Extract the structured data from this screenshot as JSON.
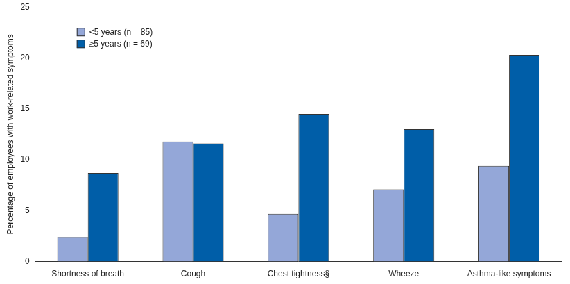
{
  "chart_data": {
    "type": "bar",
    "y_label": "Percentage of employees with work-related symptoms",
    "categories": [
      "Shortness of breath",
      "Cough",
      "Chest tightness§",
      "Wheeze",
      "Asthma-like symptoms"
    ],
    "series": [
      {
        "name": "<5 years (n = 85)",
        "color": "#94a7d8",
        "values": [
          2.4,
          11.8,
          4.7,
          7.1,
          9.4
        ]
      },
      {
        "name": "≥5 years (n = 69)",
        "color": "#005ea8",
        "values": [
          8.7,
          11.6,
          14.5,
          13.0,
          20.3
        ]
      }
    ],
    "ylim": [
      0,
      25
    ],
    "yticks": [
      0,
      5,
      10,
      15,
      20,
      25
    ],
    "grid": false,
    "legend": "upper left"
  }
}
